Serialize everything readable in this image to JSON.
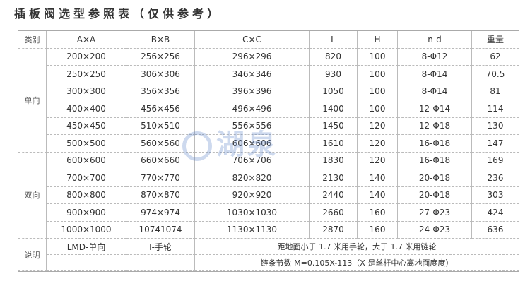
{
  "title": "插板阀选型参照表（仅供参考）",
  "headers": [
    "类别",
    "A×A",
    "B×B",
    "C×C",
    "L",
    "H",
    "n-d",
    "重量"
  ],
  "groups": [
    "单向",
    "双向"
  ],
  "rows": [
    [
      "200×200",
      "256×256",
      "296×296",
      "820",
      "100",
      "8-Φ12",
      "62"
    ],
    [
      "250×250",
      "306×306",
      "346×346",
      "930",
      "100",
      "8-Φ14",
      "70.5"
    ],
    [
      "300×300",
      "356×356",
      "396×396",
      "1050",
      "100",
      "8-Φ14",
      "81"
    ],
    [
      "400×400",
      "456×456",
      "496×496",
      "1400",
      "100",
      "12-Φ14",
      "114"
    ],
    [
      "450×450",
      "510×510",
      "556×556",
      "1450",
      "120",
      "12-Φ18",
      "130"
    ],
    [
      "500×500",
      "560×560",
      "606×606",
      "1610",
      "120",
      "16-Φ18",
      "147"
    ],
    [
      "600×600",
      "660×660",
      "706×706",
      "1830",
      "120",
      "16-Φ18",
      "169"
    ],
    [
      "700×700",
      "770×770",
      "820×820",
      "2130",
      "140",
      "20-Φ18",
      "236"
    ],
    [
      "800×800",
      "870×870",
      "920×920",
      "2440",
      "140",
      "20-Φ18",
      "303"
    ],
    [
      "900×900",
      "974×974",
      "1030×1030",
      "2660",
      "160",
      "27-Φ23",
      "424"
    ],
    [
      "1000×1000",
      "10741074",
      "1130×1130",
      "2870",
      "160",
      "24-Φ23",
      "636"
    ]
  ],
  "note": {
    "label": "说明",
    "a": "LMD-单向",
    "b": "I-手轮",
    "line1": "距地面小于 1.7 米用手轮，大于 1.7 米用链轮",
    "line2": "链条节数 M=0.105X-113（X 是丝杆中心离地面度度）"
  },
  "watermark": "湖泉"
}
